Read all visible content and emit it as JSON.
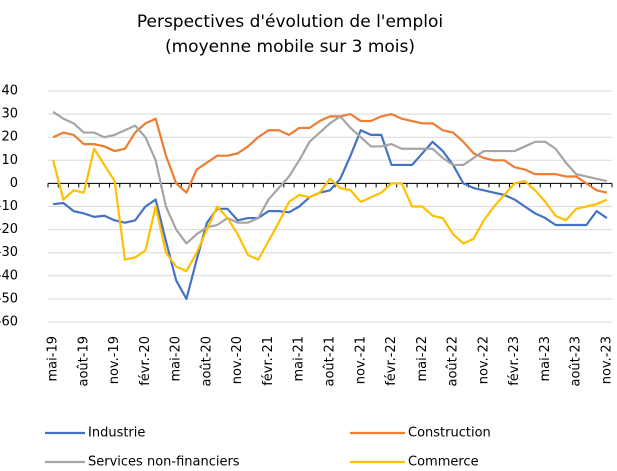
{
  "chart_data": {
    "type": "line",
    "title": "Perspectives d'évolution de l'emploi",
    "subtitle": "(moyenne mobile sur 3 mois)",
    "categories": [
      "mai-19",
      null,
      null,
      "août-19",
      null,
      null,
      "nov.-19",
      null,
      null,
      "févr.-20",
      null,
      null,
      "mai-20",
      null,
      null,
      "août-20",
      null,
      null,
      "nov.-20",
      null,
      null,
      "févr.-21",
      null,
      null,
      "mai-21",
      null,
      null,
      "août-21",
      null,
      null,
      "nov.-21",
      null,
      null,
      "févr.-22",
      null,
      null,
      "mai-22",
      null,
      null,
      "août-22",
      null,
      null,
      "nov.-22",
      null,
      null,
      "févr.-23",
      null,
      null,
      "mai-23",
      null,
      null,
      "août-23",
      null,
      null,
      "nov.-23"
    ],
    "series": [
      {
        "name": "Industrie",
        "color": "#4472c4",
        "values": [
          -9,
          -8.5,
          -12,
          -13,
          -14.5,
          -14,
          -16,
          -17,
          -16,
          -10,
          -7,
          -25,
          -42,
          -50,
          -33,
          -17,
          -11,
          -11,
          -16,
          -15,
          -15,
          -12,
          -12,
          -12.5,
          -10,
          -6,
          -4,
          -3,
          2,
          12,
          23,
          21,
          21,
          8,
          8,
          8,
          13,
          18,
          14,
          8,
          0,
          -2,
          -3,
          -4,
          -5,
          -7,
          -10,
          -13,
          -15,
          -18,
          -18,
          -18,
          -18,
          -12,
          -15
        ]
      },
      {
        "name": "Construction",
        "color": "#ed7d31",
        "values": [
          20,
          22,
          21,
          17,
          17,
          16,
          14,
          15,
          22,
          26,
          28,
          12,
          0,
          -4,
          6,
          9,
          12,
          12,
          13,
          16,
          20,
          23,
          23,
          21,
          24,
          24,
          27,
          29,
          29,
          30,
          27,
          27,
          29,
          30,
          28,
          27,
          26,
          26,
          23,
          22,
          18,
          13,
          11,
          10,
          10,
          7,
          6,
          4,
          4,
          4,
          3,
          3,
          0,
          -3,
          -4
        ]
      },
      {
        "name": "Services non-financiers",
        "color": "#a5a5a5",
        "values": [
          31,
          28,
          26,
          22,
          22,
          20,
          21,
          23,
          25,
          20,
          10,
          -10,
          -20,
          -26,
          -22,
          -19,
          -18,
          -15,
          -17,
          -17,
          -15,
          -7,
          -2,
          3,
          10,
          18,
          22,
          26,
          29,
          24,
          20,
          16,
          16,
          17,
          15,
          15,
          15,
          15,
          11,
          8,
          8,
          11,
          14,
          14,
          14,
          14,
          16,
          18,
          18,
          15,
          9,
          4,
          3,
          2,
          1
        ]
      },
      {
        "name": "Commerce",
        "color": "#ffc000",
        "values": [
          10,
          -7,
          -3,
          -4,
          15,
          8,
          1,
          -33,
          -32,
          -29,
          -10,
          -30,
          -36,
          -38,
          -30,
          -20,
          -10,
          -15,
          -22,
          -31,
          -33,
          -25,
          -17,
          -8,
          -5,
          -6,
          -4,
          2,
          -2,
          -3,
          -8,
          -6,
          -4,
          0,
          0,
          -10,
          -10,
          -14,
          -15,
          -22,
          -26,
          -24,
          -16,
          -10,
          -5,
          0,
          1,
          -3,
          -8,
          -14,
          -16,
          -11,
          -10,
          -9,
          -7
        ]
      }
    ],
    "ylim": [
      -60,
      40
    ],
    "yticks": [
      -60,
      -50,
      -40,
      -30,
      -20,
      -10,
      0,
      10,
      20,
      30,
      40
    ],
    "grid": true
  }
}
